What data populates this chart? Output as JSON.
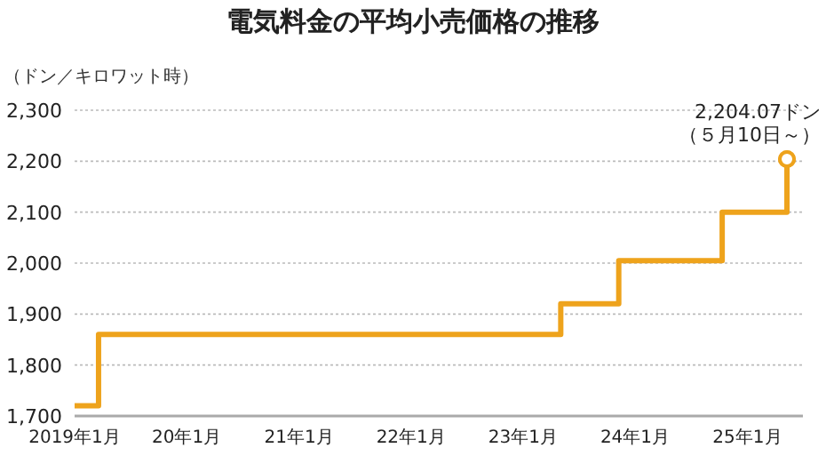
{
  "chart_data": {
    "type": "step",
    "title": "電気料金の平均小売価格の推移",
    "ylabel": "（ドン／キロワット時）",
    "x": [
      "2019-01-01",
      "2019-03-20",
      "2023-05-04",
      "2023-11-09",
      "2024-10-11",
      "2025-05-10"
    ],
    "series": [
      {
        "color": "#eea31c",
        "values": [
          1720,
          1860,
          1920,
          2005,
          2100,
          2204.07
        ]
      }
    ],
    "xlim": [
      "2019-01-01",
      "2025-07-01"
    ],
    "xticks": [
      {
        "value": "2019-01-01",
        "label": "2019年1月"
      },
      {
        "value": "2020-01-01",
        "label": "20年1月"
      },
      {
        "value": "2021-01-01",
        "label": "21年1月"
      },
      {
        "value": "2022-01-01",
        "label": "22年1月"
      },
      {
        "value": "2023-01-01",
        "label": "23年1月"
      },
      {
        "value": "2024-01-01",
        "label": "24年1月"
      },
      {
        "value": "2025-01-01",
        "label": "25年1月"
      }
    ],
    "ylim": [
      1700,
      2300
    ],
    "yticks": [
      {
        "value": 1700,
        "label": "1,700"
      },
      {
        "value": 1800,
        "label": "1,800"
      },
      {
        "value": 1900,
        "label": "1,900"
      },
      {
        "value": 2000,
        "label": "2,000"
      },
      {
        "value": 2100,
        "label": "2,100"
      },
      {
        "value": 2200,
        "label": "2,200"
      },
      {
        "value": 2300,
        "label": "2,300"
      }
    ],
    "grid": "y",
    "line_style": "solid",
    "annotations": [
      {
        "text": "2,204.07ドン",
        "x": "2025-05-10",
        "y": 2204.07
      },
      {
        "text": "（５月10日～）",
        "x": "2025-05-10",
        "y": 2204.07
      }
    ]
  }
}
